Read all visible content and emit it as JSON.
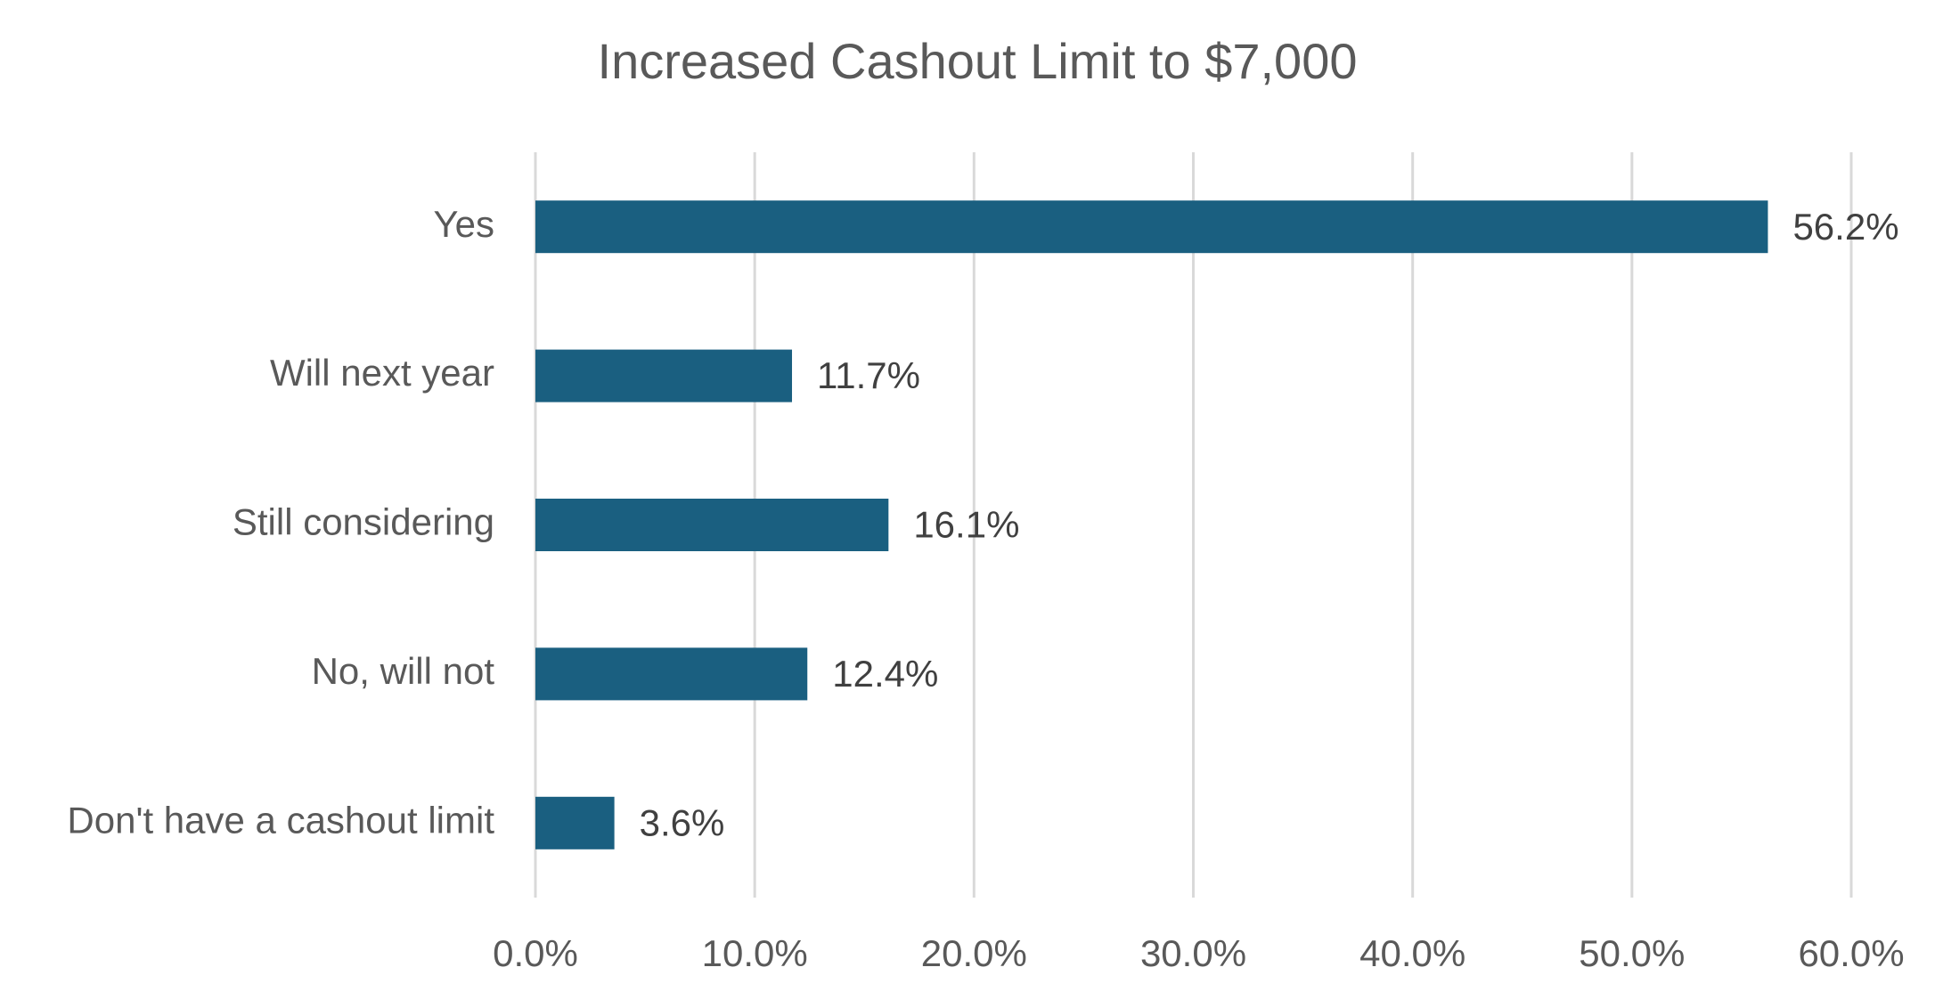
{
  "chart_data": {
    "type": "bar",
    "orientation": "horizontal",
    "title": "Increased Cashout Limit to $7,000",
    "categories": [
      "Yes",
      "Will next year",
      "Still considering",
      "No, will not",
      "Don't have a cashout limit"
    ],
    "values": [
      56.2,
      11.7,
      16.1,
      12.4,
      3.6
    ],
    "value_labels": [
      "56.2%",
      "11.7%",
      "16.1%",
      "12.4%",
      "3.6%"
    ],
    "color": "#1a5f80",
    "xlim": [
      0,
      60
    ],
    "xticks": [
      {
        "value": 0,
        "label": "0.0%"
      },
      {
        "value": 10,
        "label": "10.0%"
      },
      {
        "value": 20,
        "label": "20.0%"
      },
      {
        "value": 30,
        "label": "30.0%"
      },
      {
        "value": 40,
        "label": "40.0%"
      },
      {
        "value": 50,
        "label": "50.0%"
      },
      {
        "value": 60,
        "label": "60.0%"
      }
    ],
    "grid": true
  }
}
